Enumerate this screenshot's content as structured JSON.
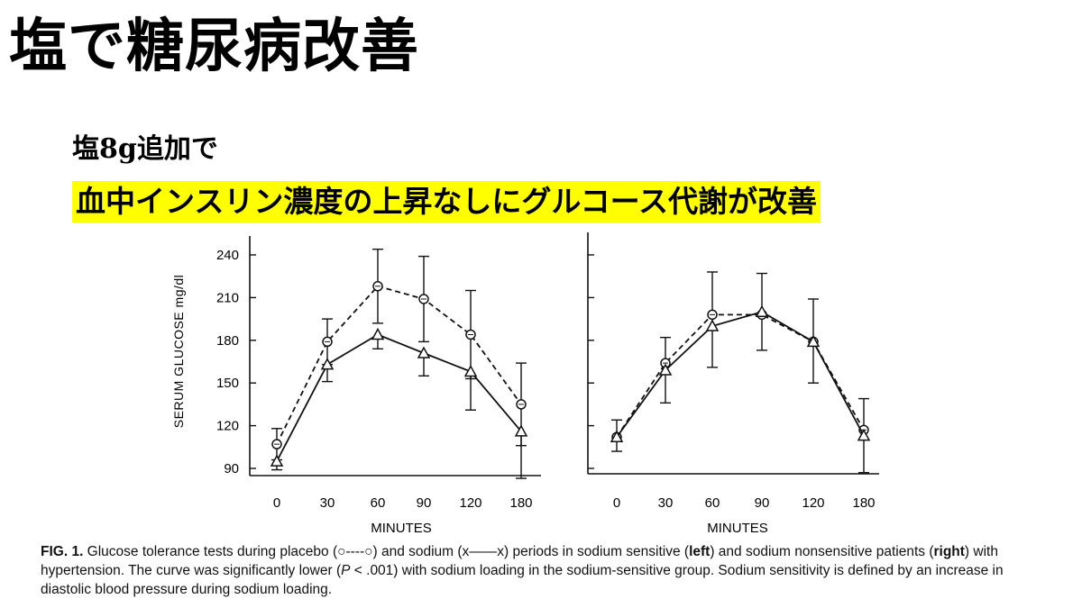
{
  "slide": {
    "title": "塩で糖尿病改善",
    "subtitle1": "塩8g追加で",
    "subtitle2": "血中インスリン濃度の上昇なしにグルコース代謝が改善"
  },
  "chart_data": [
    {
      "type": "line",
      "panel": "left",
      "ylabel": "SERUM GLUCOSE  mg/dl",
      "xlabel": "MINUTES",
      "categories": [
        "0",
        "30",
        "60",
        "90",
        "120",
        "180"
      ],
      "yticks": [
        90,
        120,
        150,
        180,
        210,
        240
      ],
      "ylim": [
        82,
        248
      ],
      "series": [
        {
          "name": "placebo",
          "marker": "circle",
          "line": "dashed",
          "values": [
            107,
            179,
            218,
            209,
            184,
            135
          ],
          "err_up": [
            11,
            16,
            26,
            30,
            31,
            29
          ],
          "err_down": [
            11,
            16,
            26,
            30,
            31,
            29
          ]
        },
        {
          "name": "sodium",
          "marker": "triangle",
          "line": "solid",
          "values": [
            95,
            163,
            184,
            171,
            158,
            116
          ],
          "err_up": [
            0,
            0,
            0,
            0,
            0,
            0
          ],
          "err_down": [
            6,
            12,
            10,
            16,
            27,
            33
          ]
        }
      ]
    },
    {
      "type": "line",
      "panel": "right",
      "xlabel": "MINUTES",
      "categories": [
        "0",
        "30",
        "60",
        "90",
        "120",
        "180"
      ],
      "ylim": [
        82,
        248
      ],
      "series": [
        {
          "name": "placebo",
          "marker": "circle",
          "line": "dashed",
          "values": [
            112,
            164,
            198,
            198,
            179,
            117
          ],
          "err_up": [
            12,
            18,
            30,
            29,
            30,
            22
          ],
          "err_down": [
            10,
            28,
            37,
            25,
            29,
            30
          ]
        },
        {
          "name": "sodium",
          "marker": "triangle",
          "line": "solid",
          "values": [
            112,
            159,
            190,
            200,
            179,
            113
          ],
          "err_up": [
            0,
            0,
            0,
            0,
            0,
            0
          ],
          "err_down": [
            0,
            0,
            0,
            0,
            0,
            0
          ]
        }
      ]
    }
  ],
  "caption": {
    "fig_label": "FIG. 1.",
    "part1": " Glucose tolerance tests during placebo (○----○) and sodium (x——x) periods in sodium sensitive (",
    "left": "left",
    "part2": ") and sodium nonsensitive patients (",
    "right": "right",
    "part3": ") with hypertension. The curve was significantly lower (",
    "p": "P",
    "part4": " < .001) with sodium loading in the sodium-sensitive group. Sodium sensitivity is defined by an increase in diastolic blood pressure during sodium loading."
  }
}
